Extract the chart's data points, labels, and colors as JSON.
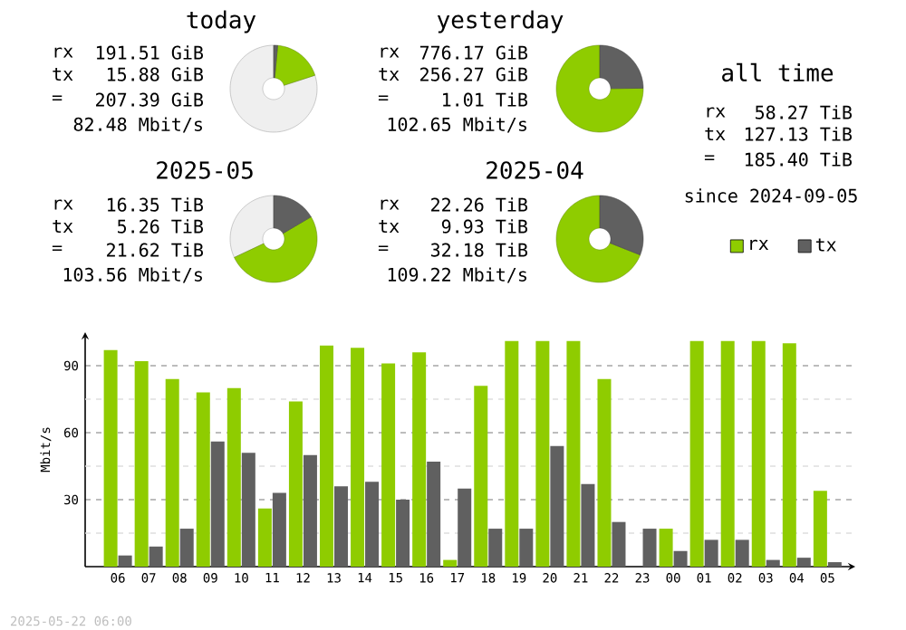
{
  "chart_data": [
    {
      "type": "donut",
      "title": "today",
      "categories": [
        null,
        null,
        null
      ],
      "values": [
        1.5,
        18.5,
        80
      ],
      "colors": [
        "#606060",
        "#8fcc00",
        "#efefef"
      ],
      "annotations": [
        "rx",
        "191.51 GiB",
        "tx",
        "15.88 GiB",
        "=",
        "207.39 GiB",
        "82.48 Mbit/s"
      ]
    },
    {
      "type": "donut",
      "title": "yesterday",
      "categories": [
        null,
        null
      ],
      "values": [
        24.8,
        75.2
      ],
      "colors": [
        "#606060",
        "#8fcc00"
      ],
      "annotations": [
        "rx",
        "776.17 GiB",
        "tx",
        "256.27 GiB",
        "=",
        "1.01 TiB",
        "102.65 Mbit/s"
      ]
    },
    {
      "type": "other",
      "title": "all time",
      "annotations": [
        "rx",
        "58.27 TiB",
        "tx",
        "127.13 TiB",
        "=",
        "185.40 TiB",
        "since 2024-09-05"
      ]
    },
    {
      "type": "donut",
      "title": "2025-05",
      "categories": [
        null,
        null,
        null
      ],
      "values": [
        16.5,
        51.5,
        32
      ],
      "colors": [
        "#606060",
        "#8fcc00",
        "#efefef"
      ],
      "annotations": [
        "rx",
        "16.35 TiB",
        "tx",
        "5.26 TiB",
        "=",
        "21.62 TiB",
        "103.56 Mbit/s"
      ]
    },
    {
      "type": "donut",
      "title": "2025-04",
      "categories": [
        null,
        null
      ],
      "values": [
        31,
        69
      ],
      "colors": [
        "#606060",
        "#8fcc00"
      ],
      "annotations": [
        "rx",
        "22.26 TiB",
        "tx",
        "9.93 TiB",
        "=",
        "32.18 TiB",
        "109.22 Mbit/s"
      ]
    },
    {
      "type": "bar",
      "ylabel": "Mbit/s",
      "categories": [
        "06",
        "07",
        "08",
        "09",
        "10",
        "11",
        "12",
        "13",
        "14",
        "15",
        "16",
        "17",
        "18",
        "19",
        "20",
        "21",
        "22",
        "23",
        "00",
        "01",
        "02",
        "03",
        "04",
        "05"
      ],
      "series": [
        {
          "name": "rx",
          "color": "#8fcc00",
          "values": [
            97,
            92,
            84,
            78,
            80,
            26,
            74,
            99,
            98,
            91,
            96,
            3,
            81,
            101,
            101,
            101,
            84,
            0,
            17,
            101,
            101,
            101,
            100,
            34
          ]
        },
        {
          "name": "tx",
          "color": "#606060",
          "values": [
            5,
            9,
            17,
            56,
            51,
            33,
            50,
            36,
            38,
            30,
            47,
            35,
            17,
            17,
            54,
            37,
            20,
            17,
            7,
            12,
            12,
            3,
            4,
            2
          ]
        }
      ],
      "ylim": [
        0,
        105
      ],
      "yticks": [
        {
          "value": 15,
          "label": null
        },
        30,
        {
          "value": 45,
          "label": null
        },
        60,
        {
          "value": 75,
          "label": null
        },
        90
      ],
      "grid": "y",
      "legend": "top right",
      "annotations": [
        "2025-05-22 06:00"
      ]
    }
  ]
}
